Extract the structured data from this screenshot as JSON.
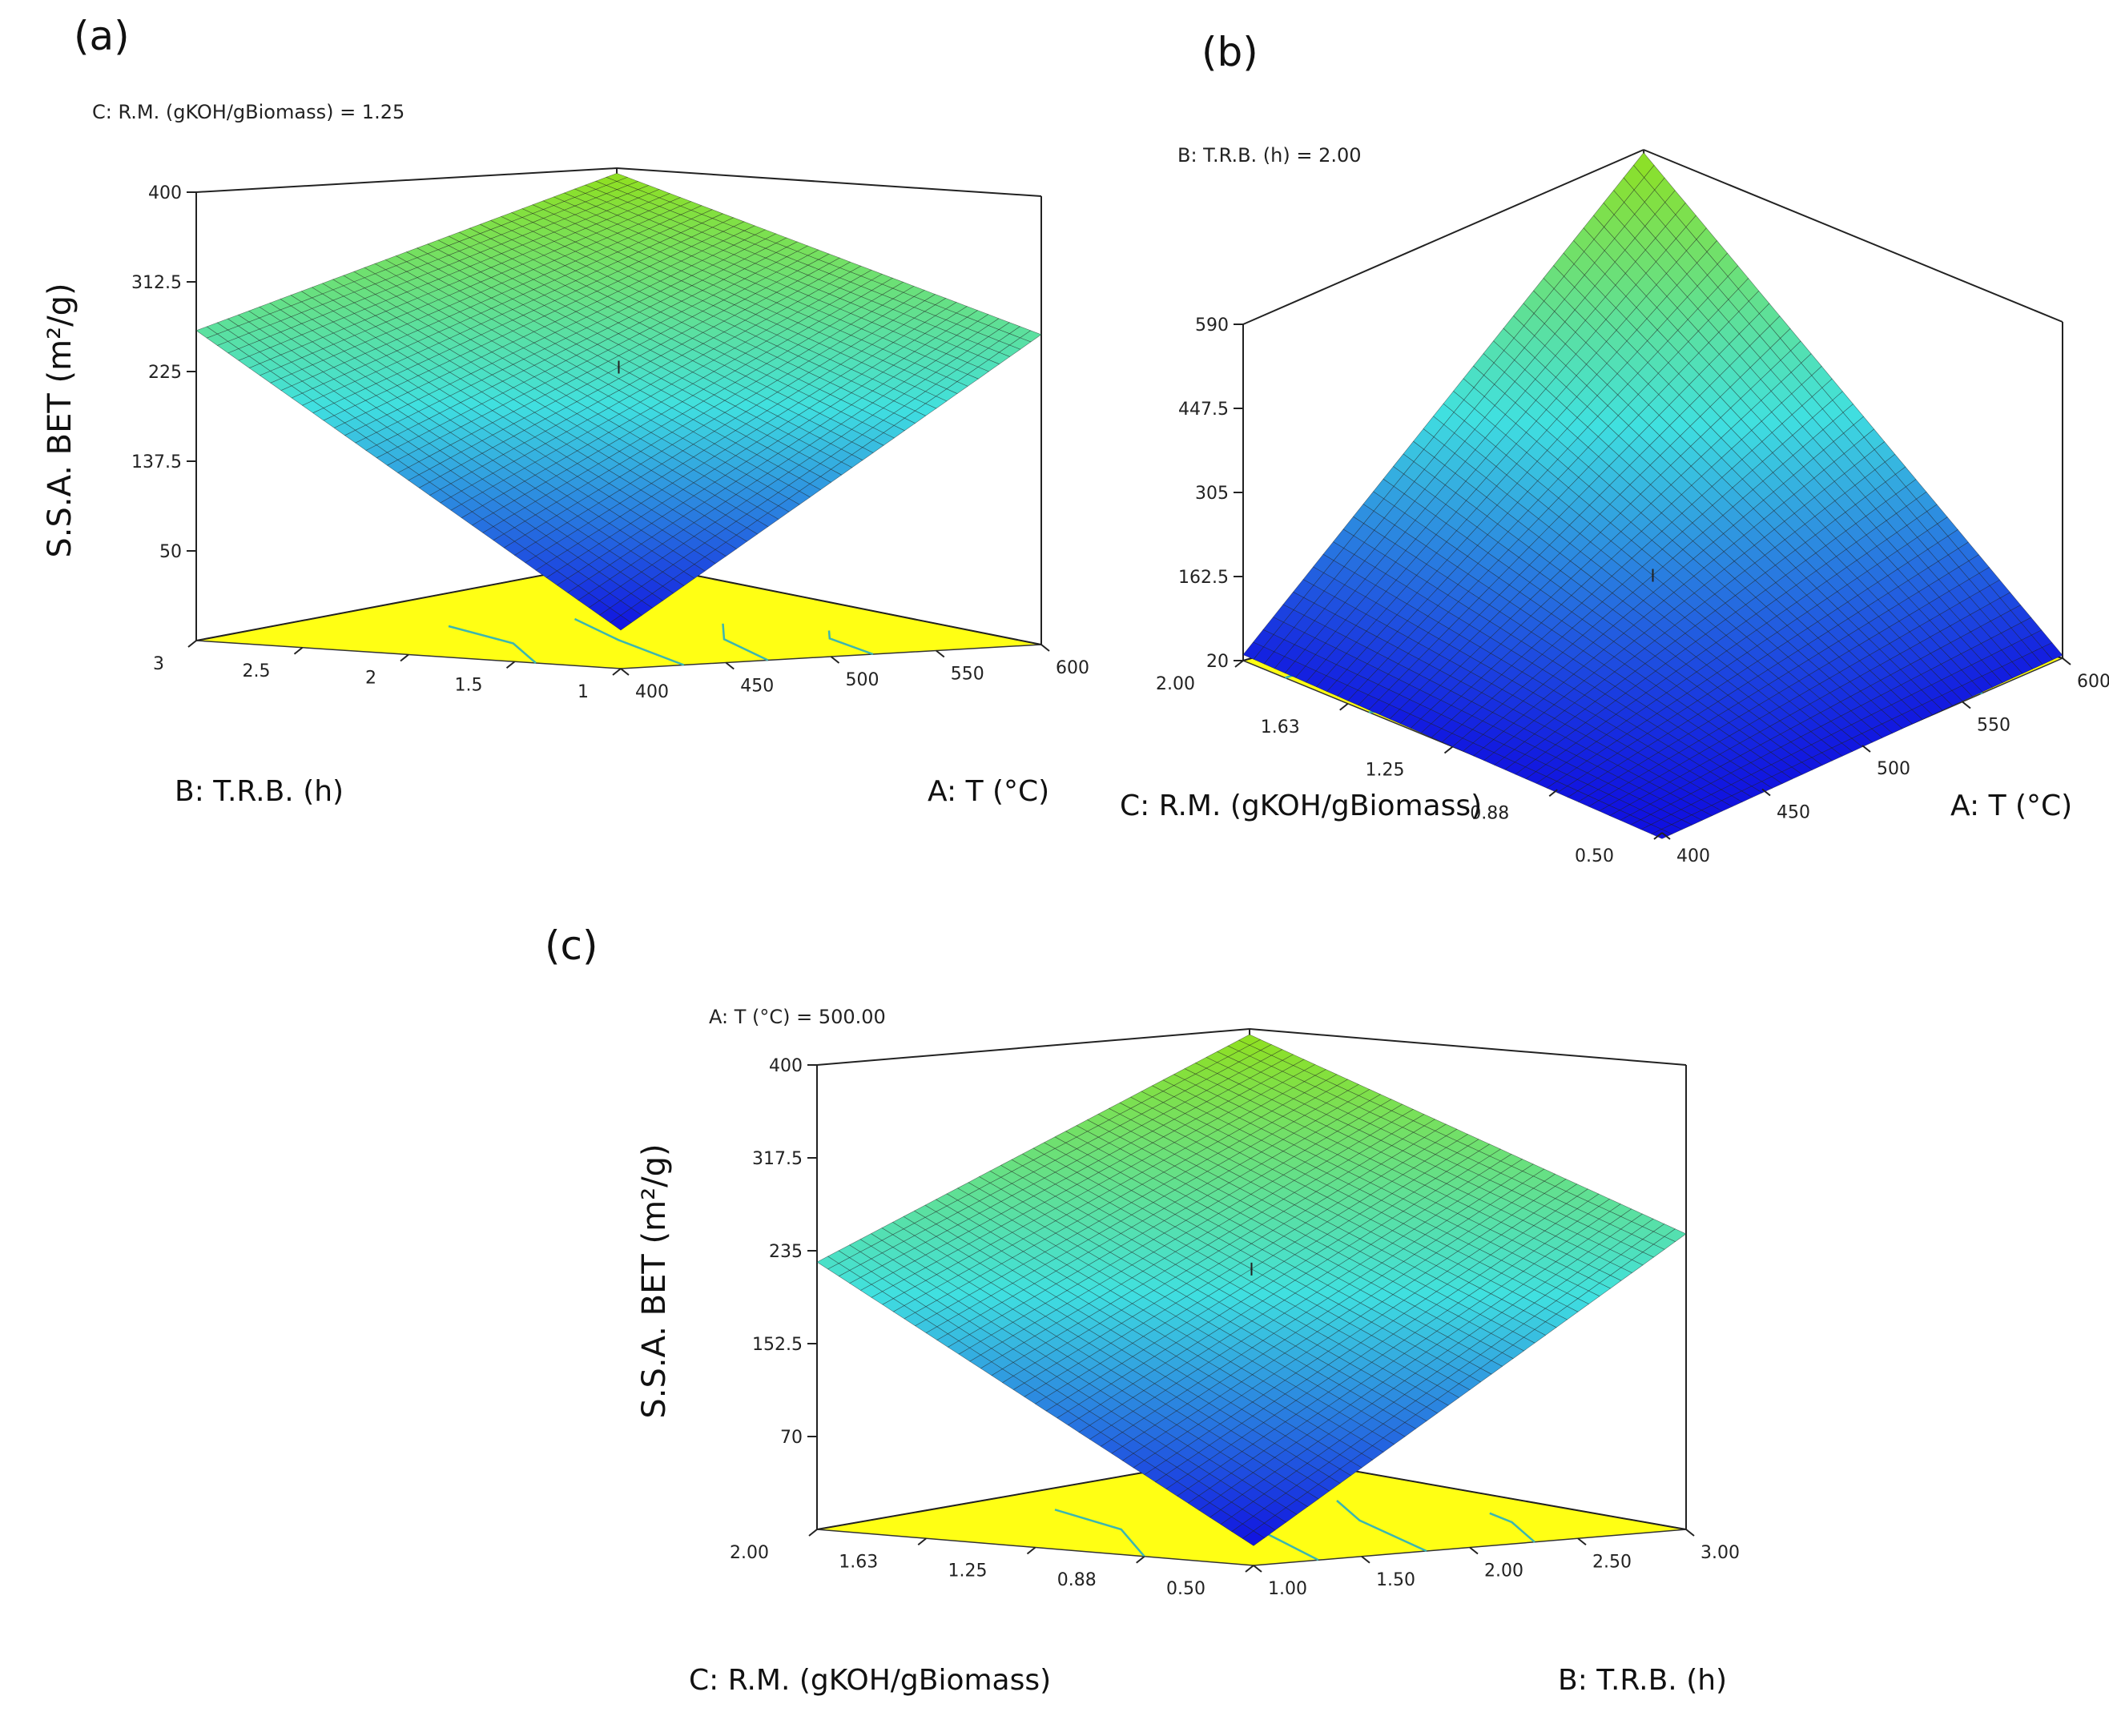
{
  "figure": {
    "panels": [
      {
        "id": "a",
        "label": "(a)",
        "fixed": "C: R.M. (gKOH/gBiomass) = 1.25"
      },
      {
        "id": "b",
        "label": "(b)",
        "fixed": "B: T.R.B. (h) = 2.00"
      },
      {
        "id": "c",
        "label": "(c)",
        "fixed": "A: T (°C) = 500.00"
      }
    ]
  },
  "colors": {
    "floor": "#ffff14",
    "contour": "#3cb6b0",
    "low": "#1010e0",
    "mid": "#40e0e0",
    "high": "#90e020"
  },
  "chart_data": [
    {
      "type": "surface",
      "title": "(a)",
      "fixed_factor": "C: R.M. (gKOH/gBiomass) = 1.25",
      "xlabel": "A: T (°C)",
      "ylabel": "B: T.R.B. (h)",
      "zlabel": "S.S.A. BET (m²/g)",
      "x_range": [
        400,
        600
      ],
      "y_range": [
        1,
        3
      ],
      "z_range": [
        -37.5,
        400
      ],
      "x_ticks": [
        "400",
        "450",
        "500",
        "550",
        "600"
      ],
      "y_ticks": [
        "1",
        "1.5",
        "2",
        "2.5",
        "3"
      ],
      "z_ticks": [
        "50",
        "137.5",
        "225",
        "312.5",
        "400"
      ],
      "corner_values": {
        "x400_y1": 0,
        "x600_y1": 265,
        "x400_y3": 265,
        "x600_y3": 395
      }
    },
    {
      "type": "surface",
      "title": "(b)",
      "fixed_factor": "B: T.R.B. (h) = 2.00",
      "xlabel": "A: T (°C)",
      "ylabel": "C: R.M. (gKOH/gBiomass)",
      "zlabel": "S.S.A. BET (m²/g)",
      "x_range": [
        400,
        600
      ],
      "y_range": [
        0.5,
        2.0
      ],
      "z_range": [
        20,
        590
      ],
      "x_ticks": [
        "400",
        "450",
        "500",
        "550",
        "600"
      ],
      "y_ticks": [
        "0.50",
        "0.88",
        "1.25",
        "1.63",
        "2.00"
      ],
      "z_ticks": [
        "20",
        "162.5",
        "305",
        "447.5",
        "590"
      ],
      "corner_values": {
        "x400_y05": 10,
        "x600_y05": 25,
        "x400_y2": 30,
        "x600_y2": 585
      }
    },
    {
      "type": "surface",
      "title": "(c)",
      "fixed_factor": "A: T (°C) = 500.00",
      "xlabel": "B: T.R.B. (h)",
      "ylabel": "C: R.M. (gKOH/gBiomass)",
      "zlabel": "S.S.A. BET (m²/g)",
      "x_range": [
        1.0,
        3.0
      ],
      "y_range": [
        0.5,
        2.0
      ],
      "z_range": [
        -12.5,
        400
      ],
      "x_ticks": [
        "1.00",
        "1.50",
        "2.00",
        "2.50",
        "3.00"
      ],
      "y_ticks": [
        "0.50",
        "0.88",
        "1.25",
        "1.63",
        "2.00"
      ],
      "z_ticks": [
        "70",
        "152.5",
        "235",
        "317.5",
        "400"
      ],
      "corner_values": {
        "x1_y05": 5,
        "x3_y05": 250,
        "x1_y2": 225,
        "x3_y2": 395
      }
    }
  ]
}
